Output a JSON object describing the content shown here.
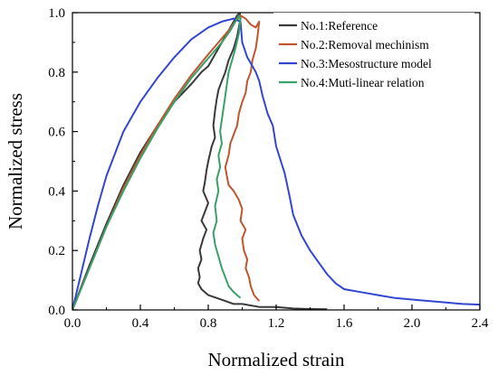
{
  "chart_data": {
    "type": "line",
    "xlabel": "Normalized strain",
    "ylabel": "Normalized stress",
    "xlim": [
      0.0,
      2.4
    ],
    "ylim": [
      0.0,
      1.0
    ],
    "xticks": [
      "0.0",
      "0.4",
      "0.8",
      "1.2",
      "1.6",
      "2.0",
      "2.4"
    ],
    "yticks": [
      "0.0",
      "0.2",
      "0.4",
      "0.6",
      "0.8",
      "1.0"
    ],
    "grid": false,
    "legend_position": "top-right",
    "series": [
      {
        "name": "No.1:Reference",
        "color": "#3a3a3a",
        "x": [
          0,
          0.1,
          0.2,
          0.3,
          0.4,
          0.5,
          0.6,
          0.7,
          0.76,
          0.8,
          0.84,
          0.88,
          0.92,
          0.95,
          0.97,
          0.985,
          0.99,
          0.97,
          0.95,
          0.92,
          0.9,
          0.88,
          0.86,
          0.85,
          0.84,
          0.83,
          0.84,
          0.82,
          0.8,
          0.79,
          0.78,
          0.77,
          0.8,
          0.78,
          0.76,
          0.79,
          0.77,
          0.75,
          0.76,
          0.74,
          0.75,
          0.74,
          0.76,
          0.8,
          0.85,
          0.9,
          0.95,
          1.0,
          1.1,
          1.2,
          1.3,
          1.4,
          1.5
        ],
        "y": [
          0,
          0.15,
          0.29,
          0.42,
          0.53,
          0.62,
          0.7,
          0.76,
          0.8,
          0.82,
          0.86,
          0.9,
          0.94,
          0.97,
          0.99,
          1.0,
          0.98,
          0.92,
          0.88,
          0.84,
          0.8,
          0.77,
          0.74,
          0.71,
          0.67,
          0.62,
          0.58,
          0.55,
          0.5,
          0.47,
          0.43,
          0.4,
          0.36,
          0.33,
          0.3,
          0.27,
          0.24,
          0.2,
          0.17,
          0.14,
          0.11,
          0.09,
          0.07,
          0.05,
          0.04,
          0.03,
          0.02,
          0.02,
          0.01,
          0.01,
          0.005,
          0.003,
          0.002
        ]
      },
      {
        "name": "No.2:Removal mechinism",
        "color": "#c0562e",
        "x": [
          0,
          0.1,
          0.2,
          0.3,
          0.4,
          0.5,
          0.6,
          0.7,
          0.8,
          0.86,
          0.92,
          0.96,
          0.99,
          1.02,
          1.05,
          1.08,
          1.1,
          1.09,
          1.08,
          1.06,
          1.05,
          1.03,
          1.02,
          1.0,
          0.98,
          0.97,
          0.95,
          0.93,
          0.92,
          0.9,
          0.91,
          0.92,
          0.95,
          0.98,
          1.0,
          0.99,
          1.02,
          1.0,
          1.01,
          1.03,
          1.02,
          1.04,
          1.05,
          1.07,
          1.1
        ],
        "y": [
          0,
          0.14,
          0.28,
          0.41,
          0.52,
          0.62,
          0.71,
          0.79,
          0.86,
          0.9,
          0.94,
          0.97,
          0.99,
          0.98,
          0.96,
          0.95,
          0.97,
          0.92,
          0.88,
          0.84,
          0.8,
          0.77,
          0.73,
          0.7,
          0.66,
          0.62,
          0.59,
          0.56,
          0.52,
          0.48,
          0.45,
          0.42,
          0.4,
          0.37,
          0.34,
          0.3,
          0.27,
          0.24,
          0.2,
          0.17,
          0.14,
          0.11,
          0.08,
          0.05,
          0.03
        ]
      },
      {
        "name": "No.3:Mesostructure model",
        "color": "#3346d0",
        "x": [
          0,
          0.05,
          0.1,
          0.15,
          0.2,
          0.3,
          0.4,
          0.5,
          0.6,
          0.7,
          0.8,
          0.88,
          0.95,
          0.99,
          1.0,
          1.03,
          1.05,
          1.08,
          1.1,
          1.12,
          1.15,
          1.18,
          1.2,
          1.25,
          1.28,
          1.3,
          1.35,
          1.4,
          1.45,
          1.5,
          1.55,
          1.6,
          1.7,
          1.8,
          1.9,
          2.0,
          2.1,
          2.2,
          2.3,
          2.4
        ],
        "y": [
          0,
          0.12,
          0.24,
          0.35,
          0.45,
          0.6,
          0.7,
          0.78,
          0.85,
          0.91,
          0.95,
          0.97,
          0.98,
          0.97,
          0.9,
          0.85,
          0.83,
          0.8,
          0.77,
          0.72,
          0.66,
          0.62,
          0.55,
          0.46,
          0.38,
          0.32,
          0.25,
          0.2,
          0.16,
          0.12,
          0.09,
          0.07,
          0.06,
          0.05,
          0.04,
          0.035,
          0.03,
          0.025,
          0.02,
          0.018
        ]
      },
      {
        "name": "No.4:Muti-linear relation",
        "color": "#3aa06a",
        "x": [
          0,
          0.1,
          0.2,
          0.3,
          0.4,
          0.5,
          0.6,
          0.7,
          0.76,
          0.82,
          0.88,
          0.93,
          0.96,
          0.98,
          0.99,
          0.98,
          0.96,
          0.94,
          0.92,
          0.91,
          0.9,
          0.89,
          0.88,
          0.87,
          0.88,
          0.86,
          0.87,
          0.85,
          0.86,
          0.84,
          0.85,
          0.83,
          0.84,
          0.86,
          0.88,
          0.9,
          0.92,
          0.95,
          0.97,
          0.99
        ],
        "y": [
          0,
          0.14,
          0.28,
          0.4,
          0.51,
          0.61,
          0.7,
          0.78,
          0.82,
          0.86,
          0.9,
          0.94,
          0.97,
          0.99,
          0.98,
          0.93,
          0.88,
          0.84,
          0.8,
          0.76,
          0.72,
          0.68,
          0.64,
          0.6,
          0.56,
          0.52,
          0.48,
          0.44,
          0.4,
          0.35,
          0.3,
          0.26,
          0.22,
          0.18,
          0.14,
          0.11,
          0.08,
          0.06,
          0.05,
          0.04
        ]
      }
    ]
  }
}
